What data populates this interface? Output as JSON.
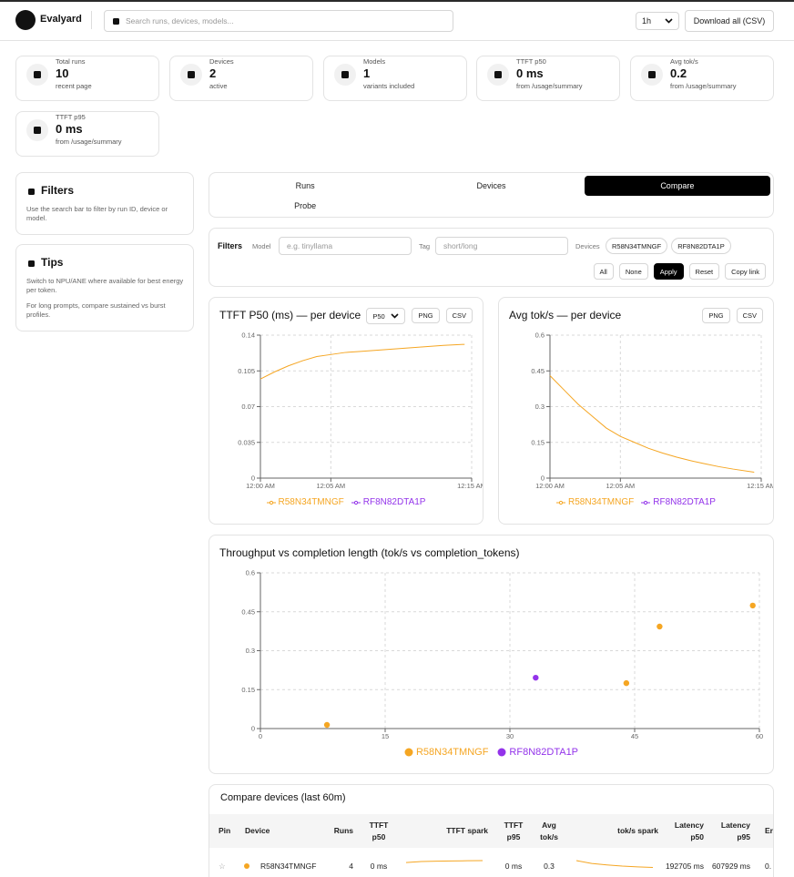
{
  "header": {
    "brand": "Evalyard",
    "search_placeholder": "Search runs, devices, models...",
    "range": "1h",
    "download": "Download all (CSV)"
  },
  "stats": [
    {
      "label": "Total runs",
      "value": "10",
      "sub": "recent page"
    },
    {
      "label": "Devices",
      "value": "2",
      "sub": "active"
    },
    {
      "label": "Models",
      "value": "1",
      "sub": "variants included"
    },
    {
      "label": "TTFT p50",
      "value": "0 ms",
      "sub": "from /usage/summary"
    },
    {
      "label": "Avg tok/s",
      "value": "0.2",
      "sub": "from /usage/summary"
    },
    {
      "label": "TTFT p95",
      "value": "0 ms",
      "sub": "from /usage/summary"
    }
  ],
  "sidebar": {
    "filters": {
      "title": "Filters",
      "text": "Use the search bar to filter by run ID, device or model."
    },
    "tips": {
      "title": "Tips",
      "paragraphs": [
        "Switch to NPU/ANE where available for best energy per token.",
        "For long prompts, compare sustained vs burst profiles."
      ]
    }
  },
  "tabs": {
    "items": [
      "Runs",
      "Devices",
      "Compare",
      "Probe"
    ],
    "active": 2
  },
  "filters": {
    "title": "Filters",
    "model_label": "Model",
    "model_placeholder": "e.g. tinyllama",
    "tag_label": "Tag",
    "tag_placeholder": "short/long",
    "devices_label": "Devices",
    "devices": [
      "R58N34TMNGF",
      "RF8N82DTA1P"
    ],
    "buttons": [
      "All",
      "None",
      "Apply",
      "Reset",
      "Copy link"
    ],
    "primary": 2
  },
  "chart_data": [
    {
      "type": "line",
      "title": "TTFT P50 (ms) — per device",
      "metric": "P50",
      "controls": [
        "PNG",
        "CSV"
      ],
      "x": [
        0,
        1,
        2,
        3,
        4,
        5,
        6,
        7,
        8,
        9,
        10,
        11,
        12,
        13,
        14.5
      ],
      "xlim": [
        0,
        15
      ],
      "xticks": [
        {
          "value": 0,
          "label": "12:00 AM"
        },
        {
          "value": 5,
          "label": "12:05 AM"
        },
        {
          "value": 15,
          "label": "12:15 AM"
        }
      ],
      "ylim": [
        0,
        0.14
      ],
      "yticks": [
        0,
        0.035,
        0.07,
        0.105,
        0.14
      ],
      "grid": true,
      "series": [
        {
          "name": "R58N34TMNGF",
          "color": "#f5a623",
          "values": [
            0.097,
            0.104,
            0.11,
            0.115,
            0.119,
            0.121,
            0.123,
            0.124,
            0.125,
            0.126,
            0.127,
            0.128,
            0.129,
            0.13,
            0.131
          ]
        },
        {
          "name": "RF8N82DTA1P",
          "color": "#9333ea",
          "values": [
            null,
            null,
            null,
            null,
            null,
            null,
            null,
            null,
            null,
            null,
            null,
            null,
            null,
            null,
            null
          ]
        }
      ]
    },
    {
      "type": "line",
      "title": "Avg tok/s — per device",
      "controls": [
        "PNG",
        "CSV"
      ],
      "x": [
        0,
        1,
        2,
        3,
        4,
        5,
        6,
        7,
        8,
        9,
        10,
        11,
        12,
        13,
        14.5
      ],
      "xlim": [
        0,
        15
      ],
      "xticks": [
        {
          "value": 0,
          "label": "12:00 AM"
        },
        {
          "value": 5,
          "label": "12:05 AM"
        },
        {
          "value": 15,
          "label": "12:15 AM"
        }
      ],
      "ylim": [
        0,
        0.6
      ],
      "yticks": [
        0,
        0.15,
        0.3,
        0.45,
        0.6
      ],
      "grid": true,
      "series": [
        {
          "name": "R58N34TMNGF",
          "color": "#f5a623",
          "values": [
            0.43,
            0.37,
            0.31,
            0.26,
            0.21,
            0.175,
            0.15,
            0.125,
            0.105,
            0.088,
            0.073,
            0.06,
            0.048,
            0.038,
            0.025
          ]
        },
        {
          "name": "RF8N82DTA1P",
          "color": "#9333ea",
          "values": [
            null,
            null,
            null,
            null,
            null,
            null,
            null,
            null,
            null,
            null,
            null,
            null,
            null,
            null,
            null
          ]
        }
      ]
    },
    {
      "type": "scatter",
      "title": "Throughput vs completion length (tok/s vs completion_tokens)",
      "xlim": [
        0,
        60
      ],
      "xticks": [
        0,
        15,
        30,
        45,
        60
      ],
      "ylim": [
        0,
        0.6
      ],
      "yticks": [
        0,
        0.15,
        0.3,
        0.45,
        0.6
      ],
      "grid": true,
      "series": [
        {
          "name": "R58N34TMNGF",
          "color": "#f5a623",
          "x": [
            8,
            44,
            48,
            59.2
          ],
          "values": [
            0.014,
            0.175,
            0.393,
            0.474
          ]
        },
        {
          "name": "RF8N82DTA1P",
          "color": "#9333ea",
          "x": [
            33.1
          ],
          "values": [
            0.196
          ]
        }
      ]
    }
  ],
  "table": {
    "title": "Compare devices (last 60m)",
    "columns": [
      "Pin",
      "Device",
      "Runs",
      "TTFT p50",
      "TTFT spark",
      "TTFT p95",
      "Avg tok/s",
      "tok/s spark",
      "Latency p50",
      "Latency p95",
      "Er"
    ],
    "rows": [
      {
        "color": "#f5a623",
        "cells": [
          "☆",
          "R58N34TMNGF",
          "4",
          "0 ms",
          [
            0.097,
            0.115,
            0.121,
            0.125,
            0.128,
            0.131
          ],
          "0 ms",
          "0.3",
          [
            0.43,
            0.26,
            0.175,
            0.105,
            0.06,
            0.025
          ],
          "192705 ms",
          "607929 ms",
          "0."
        ]
      }
    ]
  }
}
